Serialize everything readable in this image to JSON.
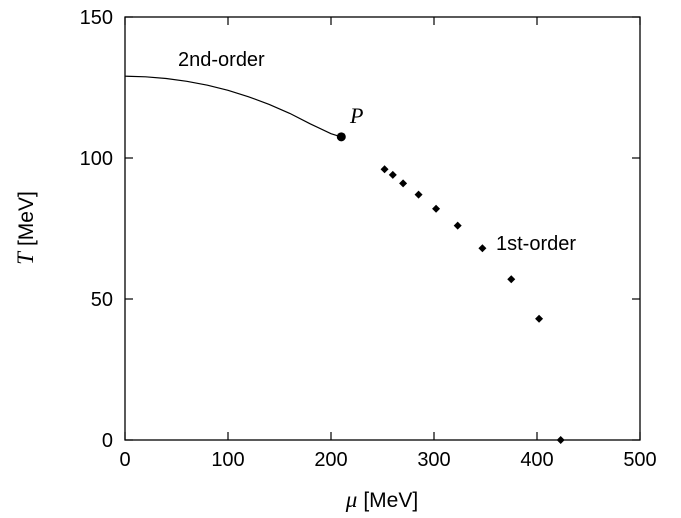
{
  "chart_data": {
    "type": "scatter",
    "xlim": [
      0,
      500
    ],
    "ylim": [
      0,
      150
    ],
    "xticks": [
      "0",
      "100",
      "200",
      "300",
      "400",
      "500"
    ],
    "yticks": [
      "0",
      "50",
      "100",
      "150"
    ],
    "xlabel": {
      "symbol": "μ",
      "unit": "[MeV]"
    },
    "ylabel": {
      "symbol": "T",
      "unit": "[MeV]"
    },
    "grid": false,
    "second_order_curve": {
      "label": "2nd-order",
      "x": [
        0,
        20,
        40,
        60,
        80,
        100,
        120,
        140,
        160,
        180,
        200,
        210
      ],
      "y": [
        129,
        128.8,
        128.2,
        127.2,
        125.8,
        124,
        121.7,
        119,
        115.8,
        112.1,
        108.6,
        107.5
      ]
    },
    "critical_point": {
      "label": "P",
      "x": 210,
      "y": 107.5
    },
    "first_order_points": {
      "label": "1st-order",
      "x": [
        252,
        260,
        270,
        285,
        302,
        323,
        347,
        375,
        402,
        423
      ],
      "y": [
        96,
        94,
        91,
        87,
        82,
        76,
        68,
        57,
        43,
        0
      ]
    }
  }
}
